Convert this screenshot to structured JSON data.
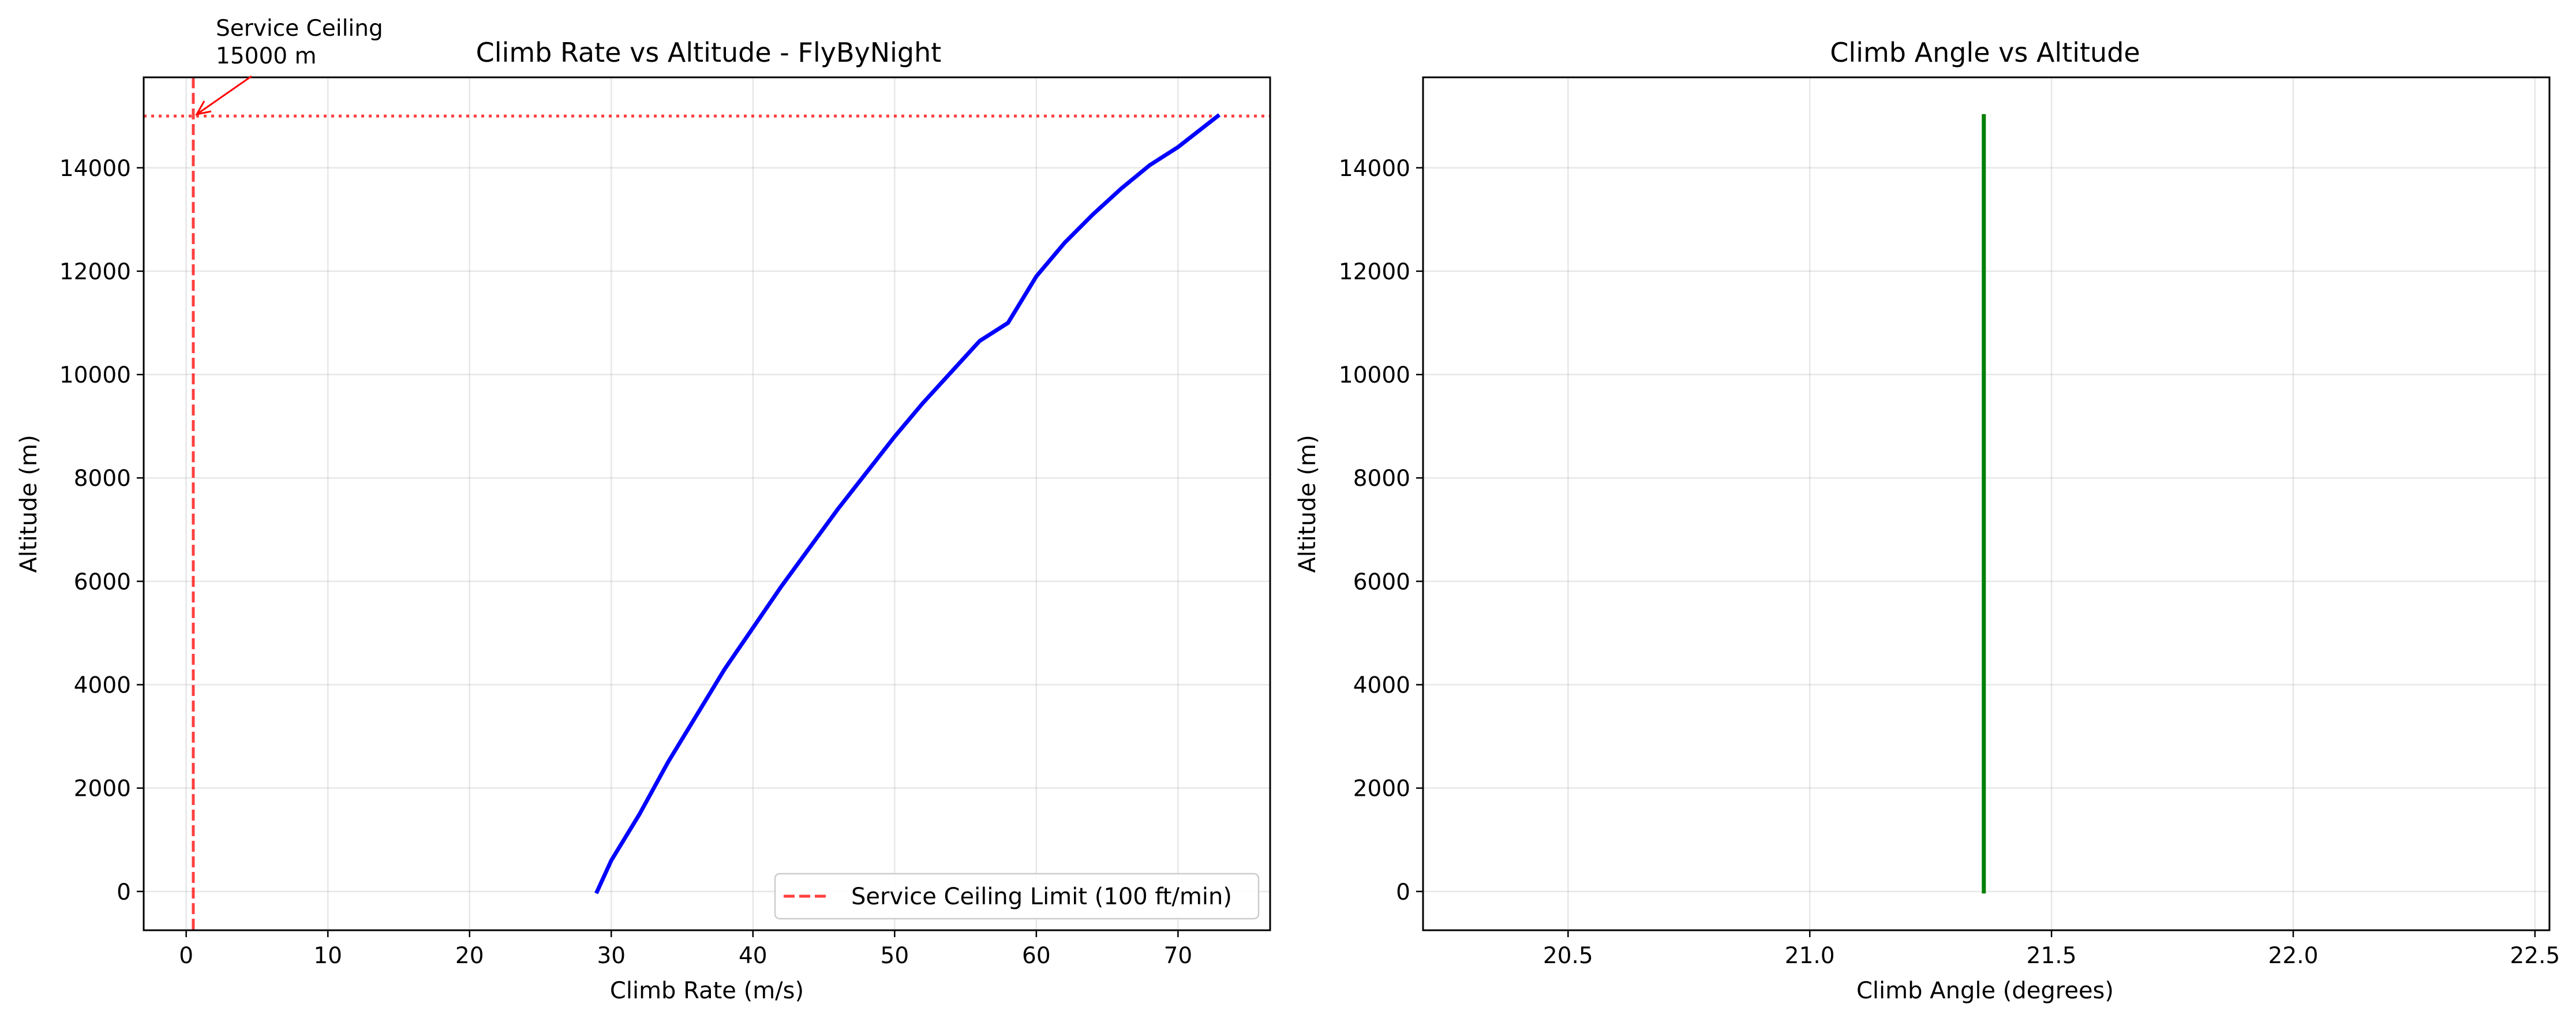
{
  "figure": {
    "background": "#ffffff"
  },
  "chart_data": [
    {
      "type": "line",
      "title": "Climb Rate vs Altitude - FlyByNight",
      "xlabel": "Climb Rate (m/s)",
      "ylabel": "Altitude (m)",
      "xlim": [
        -3,
        76.5
      ],
      "ylim": [
        -750,
        15750
      ],
      "xticks": [
        0,
        10,
        20,
        30,
        40,
        50,
        60,
        70
      ],
      "yticks": [
        0,
        2000,
        4000,
        6000,
        8000,
        10000,
        12000,
        14000
      ],
      "grid": true,
      "series": [
        {
          "color": "#0000ff",
          "points": [
            {
              "x": 29.0,
              "y": 0
            },
            {
              "x": 30.0,
              "y": 600
            },
            {
              "x": 32.0,
              "y": 1500
            },
            {
              "x": 34.0,
              "y": 2500
            },
            {
              "x": 36.0,
              "y": 3400
            },
            {
              "x": 38.0,
              "y": 4300
            },
            {
              "x": 40.0,
              "y": 5100
            },
            {
              "x": 42.0,
              "y": 5900
            },
            {
              "x": 44.0,
              "y": 6650
            },
            {
              "x": 46.0,
              "y": 7400
            },
            {
              "x": 48.0,
              "y": 8100
            },
            {
              "x": 50.0,
              "y": 8800
            },
            {
              "x": 52.0,
              "y": 9450
            },
            {
              "x": 54.0,
              "y": 10050
            },
            {
              "x": 56.0,
              "y": 10650
            },
            {
              "x": 58.0,
              "y": 11000
            },
            {
              "x": 60.0,
              "y": 11900
            },
            {
              "x": 62.0,
              "y": 12550
            },
            {
              "x": 64.0,
              "y": 13100
            },
            {
              "x": 66.0,
              "y": 13600
            },
            {
              "x": 68.0,
              "y": 14050
            },
            {
              "x": 70.0,
              "y": 14400
            },
            {
              "x": 72.8,
              "y": 15000
            }
          ]
        }
      ],
      "reference_lines": [
        {
          "orientation": "vertical",
          "x": 0.5,
          "style": "dashed",
          "color": "#ff0000",
          "label": "Service Ceiling Limit (100 ft/min)"
        },
        {
          "orientation": "horizontal",
          "y": 15000,
          "style": "dotted",
          "color": "#ff0000"
        }
      ],
      "annotation": {
        "lines": [
          "Service Ceiling",
          "15000 m"
        ],
        "point": {
          "x": 0.5,
          "y": 15000
        },
        "color": "#ff0000"
      },
      "legend": {
        "placement": "lower-right",
        "entries": [
          "Service Ceiling Limit (100 ft/min)"
        ]
      }
    },
    {
      "type": "line",
      "title": "Climb Angle vs Altitude",
      "xlabel": "Climb Angle (degrees)",
      "ylabel": "Altitude (m)",
      "xlim": [
        20.2,
        22.53
      ],
      "ylim": [
        -750,
        15750
      ],
      "xticks": [
        20.5,
        21.0,
        21.5,
        22.0,
        22.5
      ],
      "xtick_labels": [
        "20.5",
        "21.0",
        "21.5",
        "22.0",
        "22.5"
      ],
      "yticks": [
        0,
        2000,
        4000,
        6000,
        8000,
        10000,
        12000,
        14000
      ],
      "grid": true,
      "series": [
        {
          "color": "#008000",
          "points": [
            {
              "x": 21.36,
              "y": 0
            },
            {
              "x": 21.36,
              "y": 15000
            }
          ]
        }
      ]
    }
  ]
}
